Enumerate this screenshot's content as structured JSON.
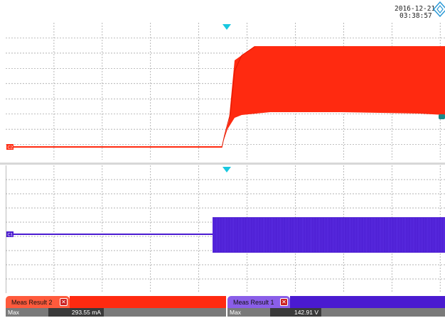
{
  "header": {
    "date": "2016-12-21",
    "time": "03:38:57",
    "logo_icon": "rohde-schwarz-diamond-icon"
  },
  "colors": {
    "channel_red": "#ff2a10",
    "channel_purple": "#4a1ad0",
    "grid": "#9a9a9a",
    "trigger": "#18c8e0",
    "tab_red": "#ff5a3c",
    "tab_purple": "#8a5ee8"
  },
  "channels": [
    {
      "id": "red",
      "marker": "C2"
    },
    {
      "id": "purple",
      "marker": "C1"
    }
  ],
  "measurements": [
    {
      "tab_label": "Meas Result 2",
      "row_label": "Max",
      "value": "293.55 mA"
    },
    {
      "tab_label": "Meas Result 1",
      "row_label": "Max",
      "value": "142.91 V"
    }
  ]
}
